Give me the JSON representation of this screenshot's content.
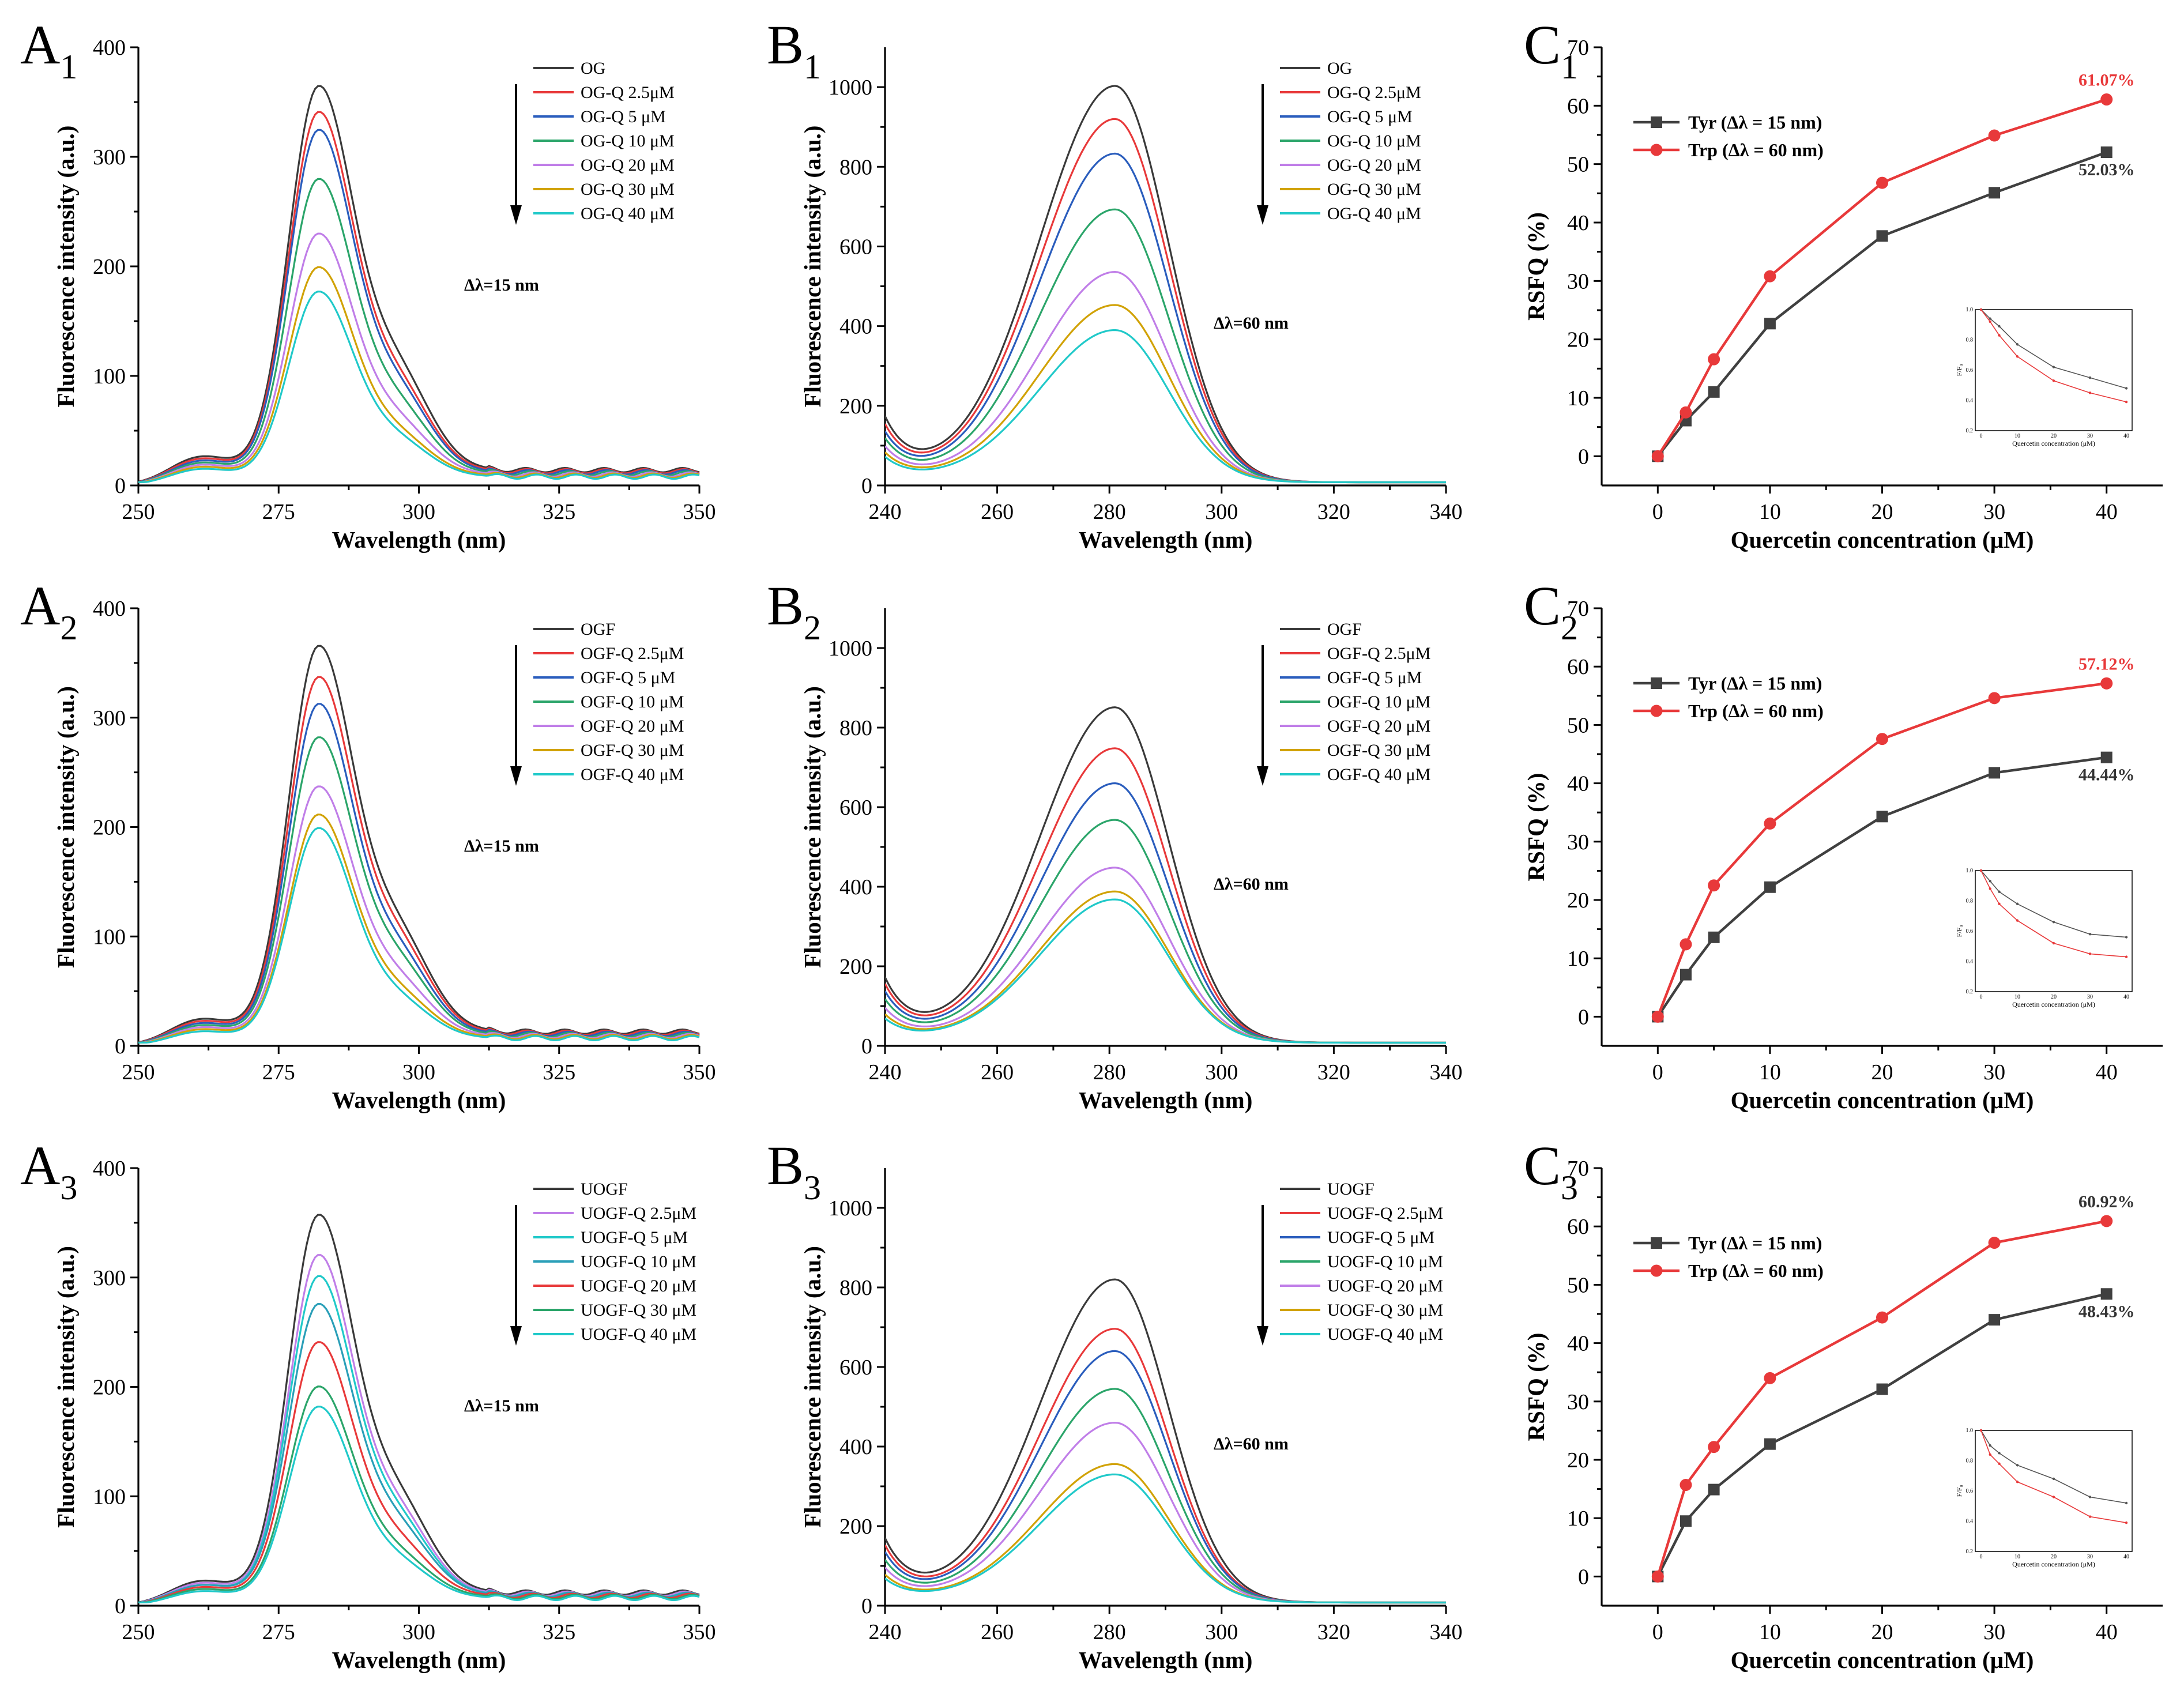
{
  "chart_data": [
    {
      "id": "A1",
      "type": "line",
      "panel": {
        "letter": "A",
        "sub": "1"
      },
      "xlabel": "Wavelength (nm)",
      "ylabel": "Fluorescence intensity (a.u.)",
      "xlim": [
        250,
        350
      ],
      "ylim": [
        0,
        400
      ],
      "xticks": [
        250,
        275,
        300,
        325,
        350
      ],
      "yticks": [
        0,
        100,
        200,
        300,
        400
      ],
      "annotation": "Δλ=15 nm",
      "peak_x": 282,
      "series": [
        {
          "name": "OG",
          "color": "#3a3a3a",
          "peak": 345,
          "shoulder": 85,
          "base": 14
        },
        {
          "name": "OG-Q 2.5μM",
          "color": "#e8393a",
          "peak": 323,
          "shoulder": 75,
          "base": 13
        },
        {
          "name": "OG-Q  5  μM",
          "color": "#2a5dbd",
          "peak": 308,
          "shoulder": 70,
          "base": 12
        },
        {
          "name": "OG-Q 10 μM",
          "color": "#2ba56a",
          "peak": 265,
          "shoulder": 58,
          "base": 11
        },
        {
          "name": "OG-Q 20 μM",
          "color": "#c07ee8",
          "peak": 217,
          "shoulder": 45,
          "base": 10
        },
        {
          "name": "OG-Q 30 μM",
          "color": "#d1a206",
          "peak": 188,
          "shoulder": 35,
          "base": 9
        },
        {
          "name": "OG-Q 40 μM",
          "color": "#20c9c9",
          "peak": 167,
          "shoulder": 31,
          "base": 8
        }
      ]
    },
    {
      "id": "B1",
      "type": "line",
      "panel": {
        "letter": "B",
        "sub": "1"
      },
      "xlabel": "Wavelength (nm)",
      "ylabel": "Fluorescence intensity (a.u.)",
      "xlim": [
        240,
        340
      ],
      "ylim": [
        0,
        1100
      ],
      "xticks": [
        240,
        260,
        280,
        300,
        320,
        340
      ],
      "yticks": [
        0,
        200,
        400,
        600,
        800,
        1000
      ],
      "annotation": "Δλ=60 nm",
      "peak_x": 281,
      "series": [
        {
          "name": "OG",
          "color": "#3a3a3a",
          "peak": 995,
          "start": 150
        },
        {
          "name": "OG-Q 2.5μM",
          "color": "#e8393a",
          "peak": 912,
          "start": 132
        },
        {
          "name": "OG-Q  5  μM",
          "color": "#2a5dbd",
          "peak": 825,
          "start": 115
        },
        {
          "name": "OG-Q 10 μM",
          "color": "#2ba56a",
          "peak": 685,
          "start": 100
        },
        {
          "name": "OG-Q 20 μM",
          "color": "#c07ee8",
          "peak": 528,
          "start": 82
        },
        {
          "name": "OG-Q 30 μM",
          "color": "#d1a206",
          "peak": 445,
          "start": 68
        },
        {
          "name": "OG-Q 40 μM",
          "color": "#20c9c9",
          "peak": 382,
          "start": 58
        }
      ]
    },
    {
      "id": "C1",
      "type": "line",
      "panel": {
        "letter": "C",
        "sub": "1"
      },
      "xlabel": "Quercetin concentration (μM)",
      "ylabel": "RSFQ (%)",
      "xlim": [
        -5,
        45
      ],
      "ylim": [
        -5,
        70
      ],
      "xticks": [
        0,
        10,
        20,
        30,
        40
      ],
      "yticks": [
        0,
        10,
        20,
        30,
        40,
        50,
        60,
        70
      ],
      "x": [
        0,
        2.5,
        5,
        10,
        20,
        30,
        40
      ],
      "series": [
        {
          "name": "Tyr (Δλ = 15 nm)",
          "color": "#404040",
          "marker": "square",
          "values": [
            0,
            6.1,
            11.0,
            22.7,
            37.7,
            45.1,
            52.03
          ]
        },
        {
          "name": "Trp (Δλ = 60 nm)",
          "color": "#e8393a",
          "marker": "circle",
          "values": [
            0,
            7.5,
            16.6,
            30.8,
            46.8,
            54.9,
            61.07
          ]
        }
      ],
      "end_labels": [
        "52.03%",
        "61.07%"
      ],
      "inset": {
        "xlabel": "Quercetin concentration (μM)",
        "ylabel": "F/F₀",
        "ylim": [
          0.2,
          1.0
        ],
        "tyr": [
          1.0,
          0.94,
          0.89,
          0.77,
          0.62,
          0.55,
          0.48
        ],
        "trp": [
          1.0,
          0.92,
          0.83,
          0.69,
          0.53,
          0.45,
          0.39
        ]
      }
    },
    {
      "id": "A2",
      "type": "line",
      "panel": {
        "letter": "A",
        "sub": "2"
      },
      "xlabel": "Wavelength (nm)",
      "ylabel": "Fluorescence intensity (a.u.)",
      "xlim": [
        250,
        350
      ],
      "ylim": [
        0,
        400
      ],
      "xticks": [
        250,
        275,
        300,
        325,
        350
      ],
      "yticks": [
        0,
        100,
        200,
        300,
        400
      ],
      "annotation": "Δλ=15 nm",
      "peak_x": 282,
      "series": [
        {
          "name": "OGF",
          "color": "#3a3a3a",
          "peak": 347,
          "shoulder": 85,
          "base": 13
        },
        {
          "name": "OGF-Q 2.5μM",
          "color": "#e8393a",
          "peak": 320,
          "shoulder": 78,
          "base": 12
        },
        {
          "name": "OGF-Q  5  μM",
          "color": "#2a5dbd",
          "peak": 297,
          "shoulder": 70,
          "base": 11
        },
        {
          "name": "OGF-Q 10 μM",
          "color": "#2ba56a",
          "peak": 268,
          "shoulder": 62,
          "base": 10
        },
        {
          "name": "OGF-Q 20 μM",
          "color": "#c07ee8",
          "peak": 225,
          "shoulder": 48,
          "base": 9
        },
        {
          "name": "OGF-Q 30 μM",
          "color": "#d1a206",
          "peak": 201,
          "shoulder": 38,
          "base": 8
        },
        {
          "name": "OGF-Q 40 μM",
          "color": "#20c9c9",
          "peak": 190,
          "shoulder": 33,
          "base": 7
        }
      ]
    },
    {
      "id": "B2",
      "type": "line",
      "panel": {
        "letter": "B",
        "sub": "2"
      },
      "xlabel": "Wavelength (nm)",
      "ylabel": "Fluorescence intensity (a.u.)",
      "xlim": [
        240,
        340
      ],
      "ylim": [
        0,
        1100
      ],
      "xticks": [
        240,
        260,
        280,
        300,
        320,
        340
      ],
      "yticks": [
        0,
        200,
        400,
        600,
        800,
        1000
      ],
      "annotation": "Δλ=60 nm",
      "peak_x": 281,
      "series": [
        {
          "name": "OGF",
          "color": "#3a3a3a",
          "peak": 843,
          "start": 150
        },
        {
          "name": "OGF-Q 2.5μM",
          "color": "#e8393a",
          "peak": 740,
          "start": 135
        },
        {
          "name": "OGF-Q  5  μM",
          "color": "#2a5dbd",
          "peak": 652,
          "start": 118
        },
        {
          "name": "OGF-Q 10 μM",
          "color": "#2ba56a",
          "peak": 560,
          "start": 100
        },
        {
          "name": "OGF-Q 20 μM",
          "color": "#c07ee8",
          "peak": 440,
          "start": 80
        },
        {
          "name": "OGF-Q 30 μM",
          "color": "#d1a206",
          "peak": 380,
          "start": 65
        },
        {
          "name": "OGF-Q 40 μM",
          "color": "#20c9c9",
          "peak": 360,
          "start": 55
        }
      ]
    },
    {
      "id": "C2",
      "type": "line",
      "panel": {
        "letter": "C",
        "sub": "2"
      },
      "xlabel": "Quercetin concentration (μM)",
      "ylabel": "RSFQ (%)",
      "xlim": [
        -5,
        45
      ],
      "ylim": [
        -5,
        70
      ],
      "xticks": [
        0,
        10,
        20,
        30,
        40
      ],
      "yticks": [
        0,
        10,
        20,
        30,
        40,
        50,
        60,
        70
      ],
      "x": [
        0,
        2.5,
        5,
        10,
        20,
        30,
        40
      ],
      "series": [
        {
          "name": "Tyr (Δλ = 15 nm)",
          "color": "#404040",
          "marker": "square",
          "values": [
            0,
            7.2,
            13.6,
            22.2,
            34.3,
            41.8,
            44.44
          ]
        },
        {
          "name": "Trp (Δλ = 60 nm)",
          "color": "#e8393a",
          "marker": "circle",
          "values": [
            0,
            12.4,
            22.5,
            33.1,
            47.6,
            54.6,
            57.12
          ]
        }
      ],
      "end_labels": [
        "44.44%",
        "57.12%"
      ],
      "inset": {
        "xlabel": "Quercetin concentration (μM)",
        "ylabel": "F/F₀",
        "ylim": [
          0.2,
          1.0
        ],
        "tyr": [
          1.0,
          0.93,
          0.86,
          0.78,
          0.66,
          0.58,
          0.56
        ],
        "trp": [
          1.0,
          0.88,
          0.78,
          0.67,
          0.52,
          0.45,
          0.43
        ]
      }
    },
    {
      "id": "A3",
      "type": "line",
      "panel": {
        "letter": "A",
        "sub": "3"
      },
      "xlabel": "Wavelength (nm)",
      "ylabel": "Fluorescence intensity (a.u.)",
      "xlim": [
        250,
        350
      ],
      "ylim": [
        0,
        400
      ],
      "xticks": [
        250,
        275,
        300,
        325,
        350
      ],
      "yticks": [
        0,
        100,
        200,
        300,
        400
      ],
      "annotation": "Δλ=15 nm",
      "peak_x": 282,
      "series": [
        {
          "name": "UOGF",
          "color": "#3a3a3a",
          "peak": 340,
          "shoulder": 80,
          "base": 12
        },
        {
          "name": "UOGF-Q 2.5μM",
          "color": "#c07ee8",
          "peak": 305,
          "shoulder": 70,
          "base": 11
        },
        {
          "name": "UOGF-Q  5  μM",
          "color": "#20c9c9",
          "peak": 287,
          "shoulder": 65,
          "base": 10
        },
        {
          "name": "UOGF-Q 10 μM",
          "color": "#2a9fb8",
          "peak": 262,
          "shoulder": 58,
          "base": 10
        },
        {
          "name": "UOGF-Q 20 μM",
          "color": "#e8393a",
          "peak": 229,
          "shoulder": 46,
          "base": 9
        },
        {
          "name": "UOGF-Q 30 μM",
          "color": "#2ba56a",
          "peak": 190,
          "shoulder": 36,
          "base": 8
        },
        {
          "name": "UOGF-Q 40 μM",
          "color": "#20c9c9",
          "peak": 173,
          "shoulder": 31,
          "base": 7
        }
      ]
    },
    {
      "id": "B3",
      "type": "line",
      "panel": {
        "letter": "B",
        "sub": "3"
      },
      "xlabel": "Wavelength (nm)",
      "ylabel": "Fluorescence intensity (a.u.)",
      "xlim": [
        240,
        340
      ],
      "ylim": [
        0,
        1100
      ],
      "xticks": [
        240,
        260,
        280,
        300,
        320,
        340
      ],
      "yticks": [
        0,
        200,
        400,
        600,
        800,
        1000
      ],
      "annotation": "Δλ=60 nm",
      "peak_x": 281,
      "series": [
        {
          "name": "UOGF",
          "color": "#3a3a3a",
          "peak": 812,
          "start": 148
        },
        {
          "name": "UOGF-Q 2.5μM",
          "color": "#e8393a",
          "peak": 688,
          "start": 132
        },
        {
          "name": "UOGF-Q  5  μM",
          "color": "#2a5dbd",
          "peak": 632,
          "start": 116
        },
        {
          "name": "UOGF-Q 10 μM",
          "color": "#2ba56a",
          "peak": 537,
          "start": 98
        },
        {
          "name": "UOGF-Q 20 μM",
          "color": "#c07ee8",
          "peak": 452,
          "start": 80
        },
        {
          "name": "UOGF-Q 30 μM",
          "color": "#d1a206",
          "peak": 348,
          "start": 64
        },
        {
          "name": "UOGF-Q 40 μM",
          "color": "#20c9c9",
          "peak": 322,
          "start": 55
        }
      ]
    },
    {
      "id": "C3",
      "type": "line",
      "panel": {
        "letter": "C",
        "sub": "3"
      },
      "xlabel": "Quercetin concentration (μM)",
      "ylabel": "RSFQ (%)",
      "xlim": [
        -5,
        45
      ],
      "ylim": [
        -5,
        70
      ],
      "xticks": [
        0,
        10,
        20,
        30,
        40
      ],
      "yticks": [
        0,
        10,
        20,
        30,
        40,
        50,
        60,
        70
      ],
      "x": [
        0,
        2.5,
        5,
        10,
        20,
        30,
        40
      ],
      "series": [
        {
          "name": "Tyr (Δλ = 15 nm)",
          "color": "#404040",
          "marker": "square",
          "values": [
            0,
            9.5,
            14.9,
            22.7,
            32.1,
            44.0,
            48.43
          ]
        },
        {
          "name": "Trp (Δλ = 60 nm)",
          "color": "#e8393a",
          "marker": "circle",
          "values": [
            0,
            15.7,
            22.2,
            34.0,
            44.4,
            57.2,
            60.92
          ]
        }
      ],
      "end_labels": [
        "48.43%",
        "60.92%"
      ],
      "inset": {
        "xlabel": "Quercetin concentration (μM)",
        "ylabel": "F/F₀",
        "ylim": [
          0.2,
          1.0
        ],
        "tyr": [
          1.0,
          0.9,
          0.85,
          0.77,
          0.68,
          0.56,
          0.52
        ],
        "trp": [
          1.0,
          0.84,
          0.78,
          0.66,
          0.56,
          0.43,
          0.39
        ]
      }
    }
  ]
}
